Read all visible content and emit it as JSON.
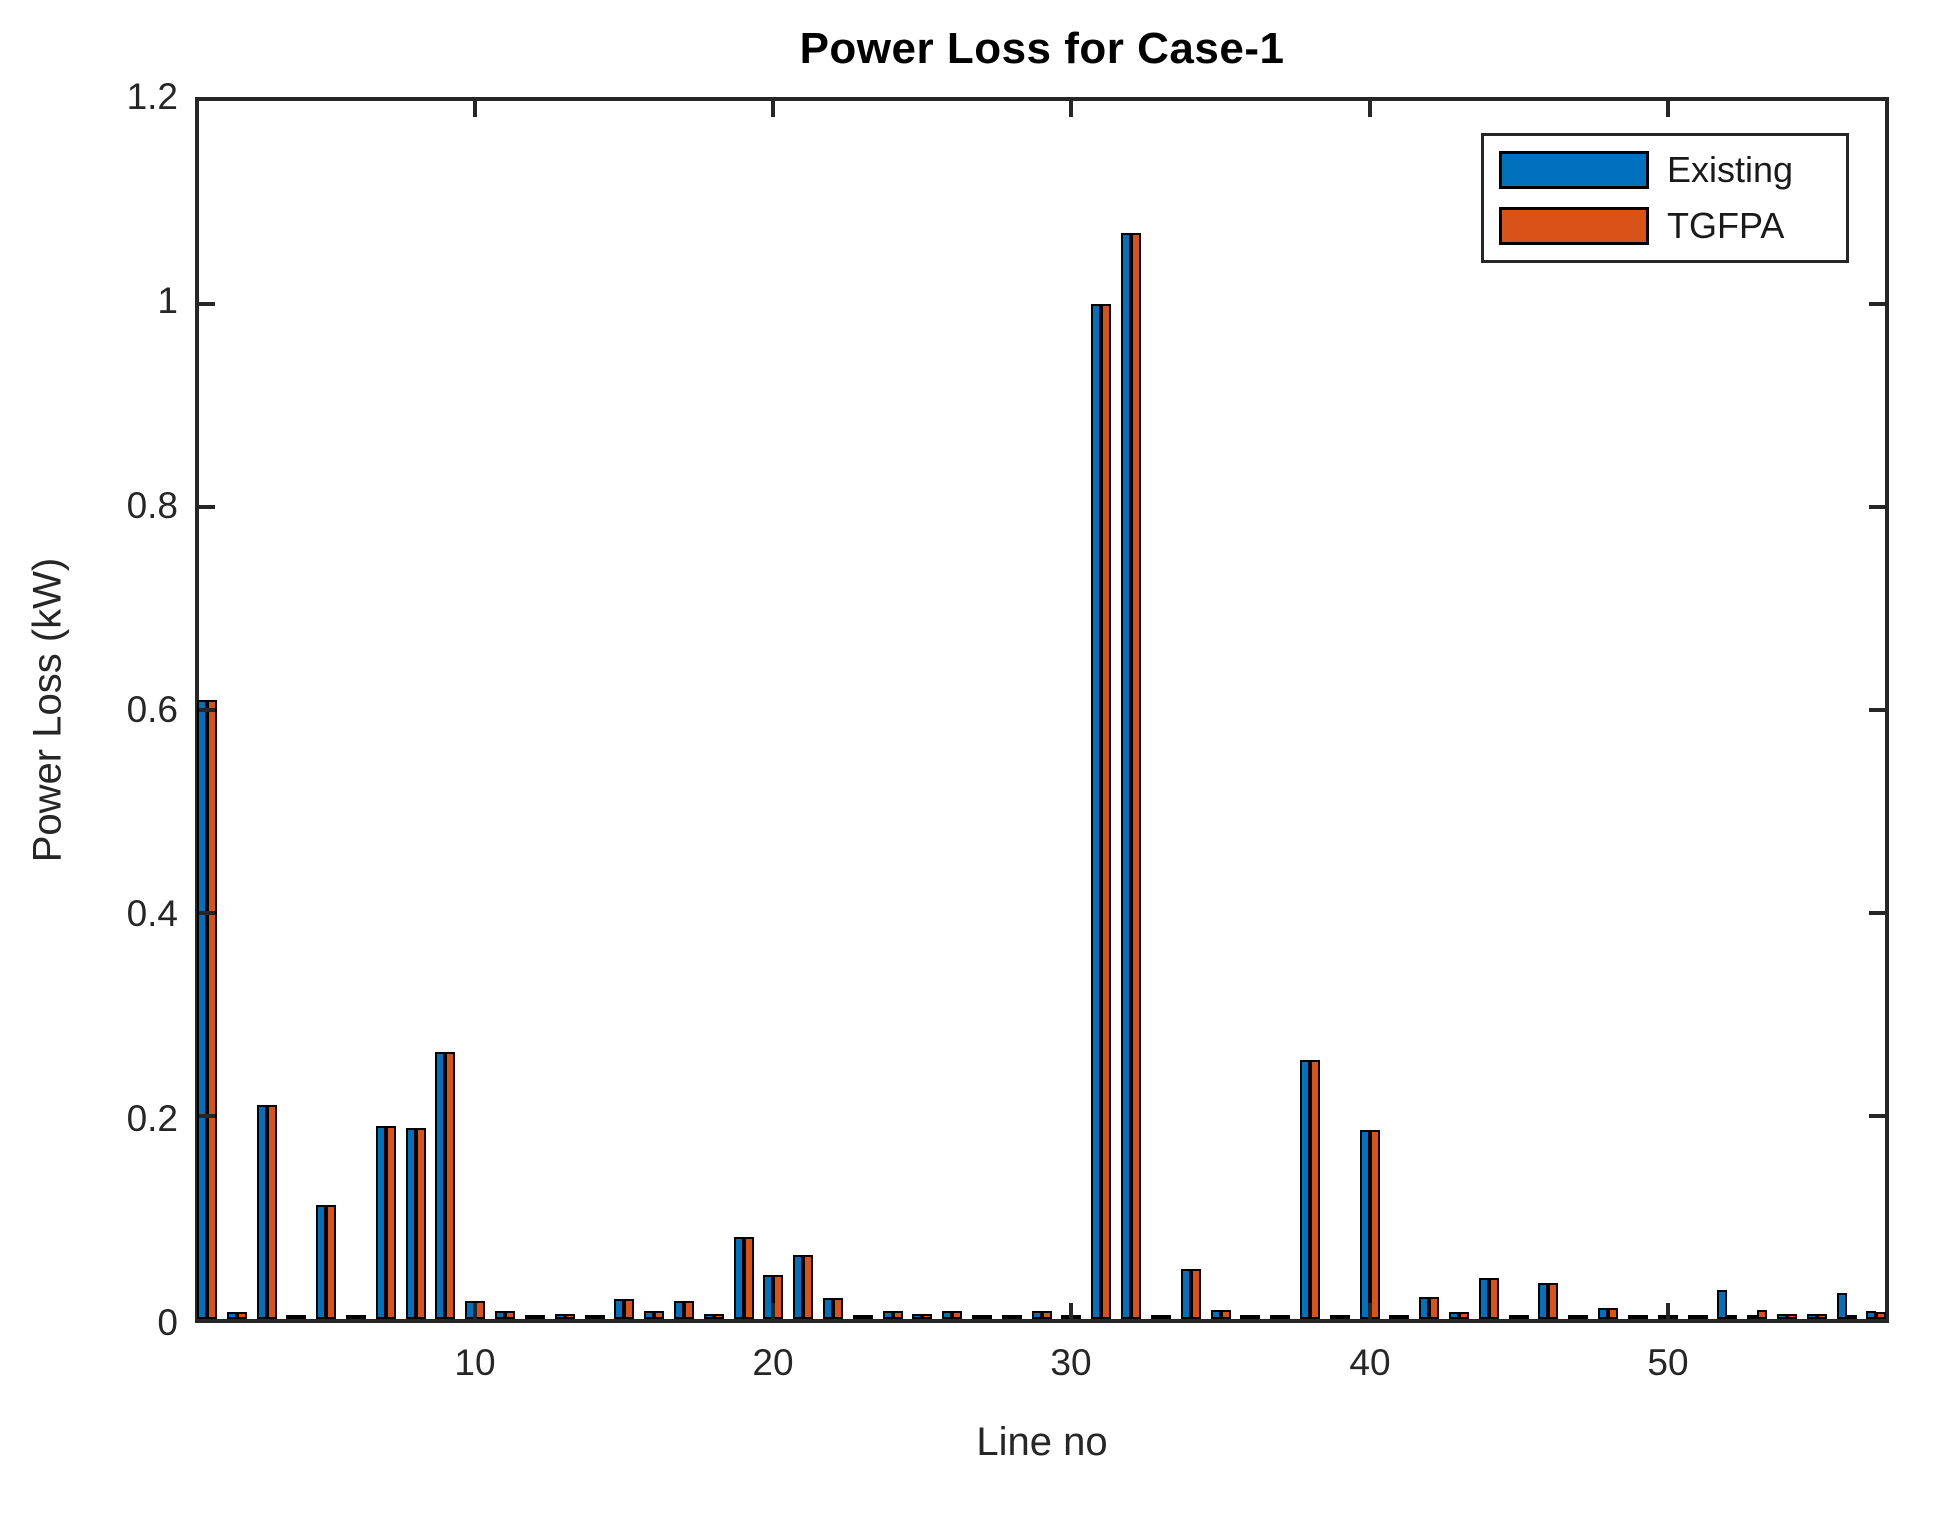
{
  "figure": {
    "title": "Power Loss for Case-1",
    "xlabel": "Line no",
    "ylabel": "Power Loss (kW)"
  },
  "legend": {
    "items": [
      {
        "label": "Existing",
        "color": "#0072BD"
      },
      {
        "label": "TGFPA",
        "color": "#D95319"
      }
    ]
  },
  "colors": {
    "existing": "#0072BD",
    "tgfpa": "#D95319",
    "axis": "#262626",
    "bar_edge": "#000000",
    "background": "#ffffff"
  },
  "chart_data": {
    "type": "bar",
    "title": "Power Loss for Case-1",
    "xlabel": "Line no",
    "ylabel": "Power Loss (kW)",
    "ylim": [
      0,
      1.2
    ],
    "yticks": [
      0,
      0.2,
      0.4,
      0.6,
      0.8,
      1,
      1.2
    ],
    "ytick_labels": [
      "0",
      "0.2",
      "0.4",
      "0.6",
      "0.8",
      "1",
      "1.2"
    ],
    "xticks": [
      10,
      20,
      30,
      40,
      50
    ],
    "grid": false,
    "legend_position": "top-right",
    "x": [
      1,
      2,
      3,
      4,
      5,
      6,
      7,
      8,
      9,
      10,
      11,
      12,
      13,
      14,
      15,
      16,
      17,
      18,
      19,
      20,
      21,
      22,
      23,
      24,
      25,
      26,
      27,
      28,
      29,
      30,
      31,
      32,
      33,
      34,
      35,
      36,
      37,
      38,
      39,
      40,
      41,
      42,
      43,
      44,
      45,
      46,
      47,
      48,
      49,
      50,
      51,
      52,
      53,
      54,
      55,
      56,
      57
    ],
    "series": [
      {
        "name": "Existing",
        "color": "#0072BD",
        "values": [
          0.61,
          0.007,
          0.211,
          0.002,
          0.112,
          0.004,
          0.19,
          0.188,
          0.263,
          0.018,
          0.008,
          0.003,
          0.005,
          0.004,
          0.02,
          0.008,
          0.018,
          0.005,
          0.081,
          0.043,
          0.063,
          0.021,
          0.003,
          0.008,
          0.005,
          0.008,
          0.004,
          0.003,
          0.008,
          0.002,
          1.0,
          1.07,
          0.004,
          0.049,
          0.009,
          0.002,
          0.003,
          0.255,
          0.002,
          0.186,
          0.002,
          0.022,
          0.007,
          0.04,
          0.004,
          0.035,
          0.003,
          0.011,
          0.004,
          0.002,
          0.002,
          0.029,
          0.004,
          0.005,
          0.005,
          0.026,
          0.008
        ]
      },
      {
        "name": "TGFPA",
        "color": "#D95319",
        "values": [
          0.61,
          0.007,
          0.211,
          0.002,
          0.112,
          0.004,
          0.19,
          0.188,
          0.263,
          0.018,
          0.008,
          0.003,
          0.005,
          0.004,
          0.02,
          0.008,
          0.018,
          0.005,
          0.081,
          0.043,
          0.063,
          0.021,
          0.003,
          0.008,
          0.005,
          0.008,
          0.004,
          0.003,
          0.008,
          0.002,
          1.0,
          1.07,
          0.004,
          0.049,
          0.009,
          0.002,
          0.003,
          0.255,
          0.002,
          0.186,
          0.002,
          0.022,
          0.007,
          0.04,
          0.004,
          0.035,
          0.003,
          0.011,
          0.004,
          0.002,
          0.002,
          0.004,
          0.009,
          0.005,
          0.005,
          0.004,
          0.007
        ]
      }
    ]
  }
}
